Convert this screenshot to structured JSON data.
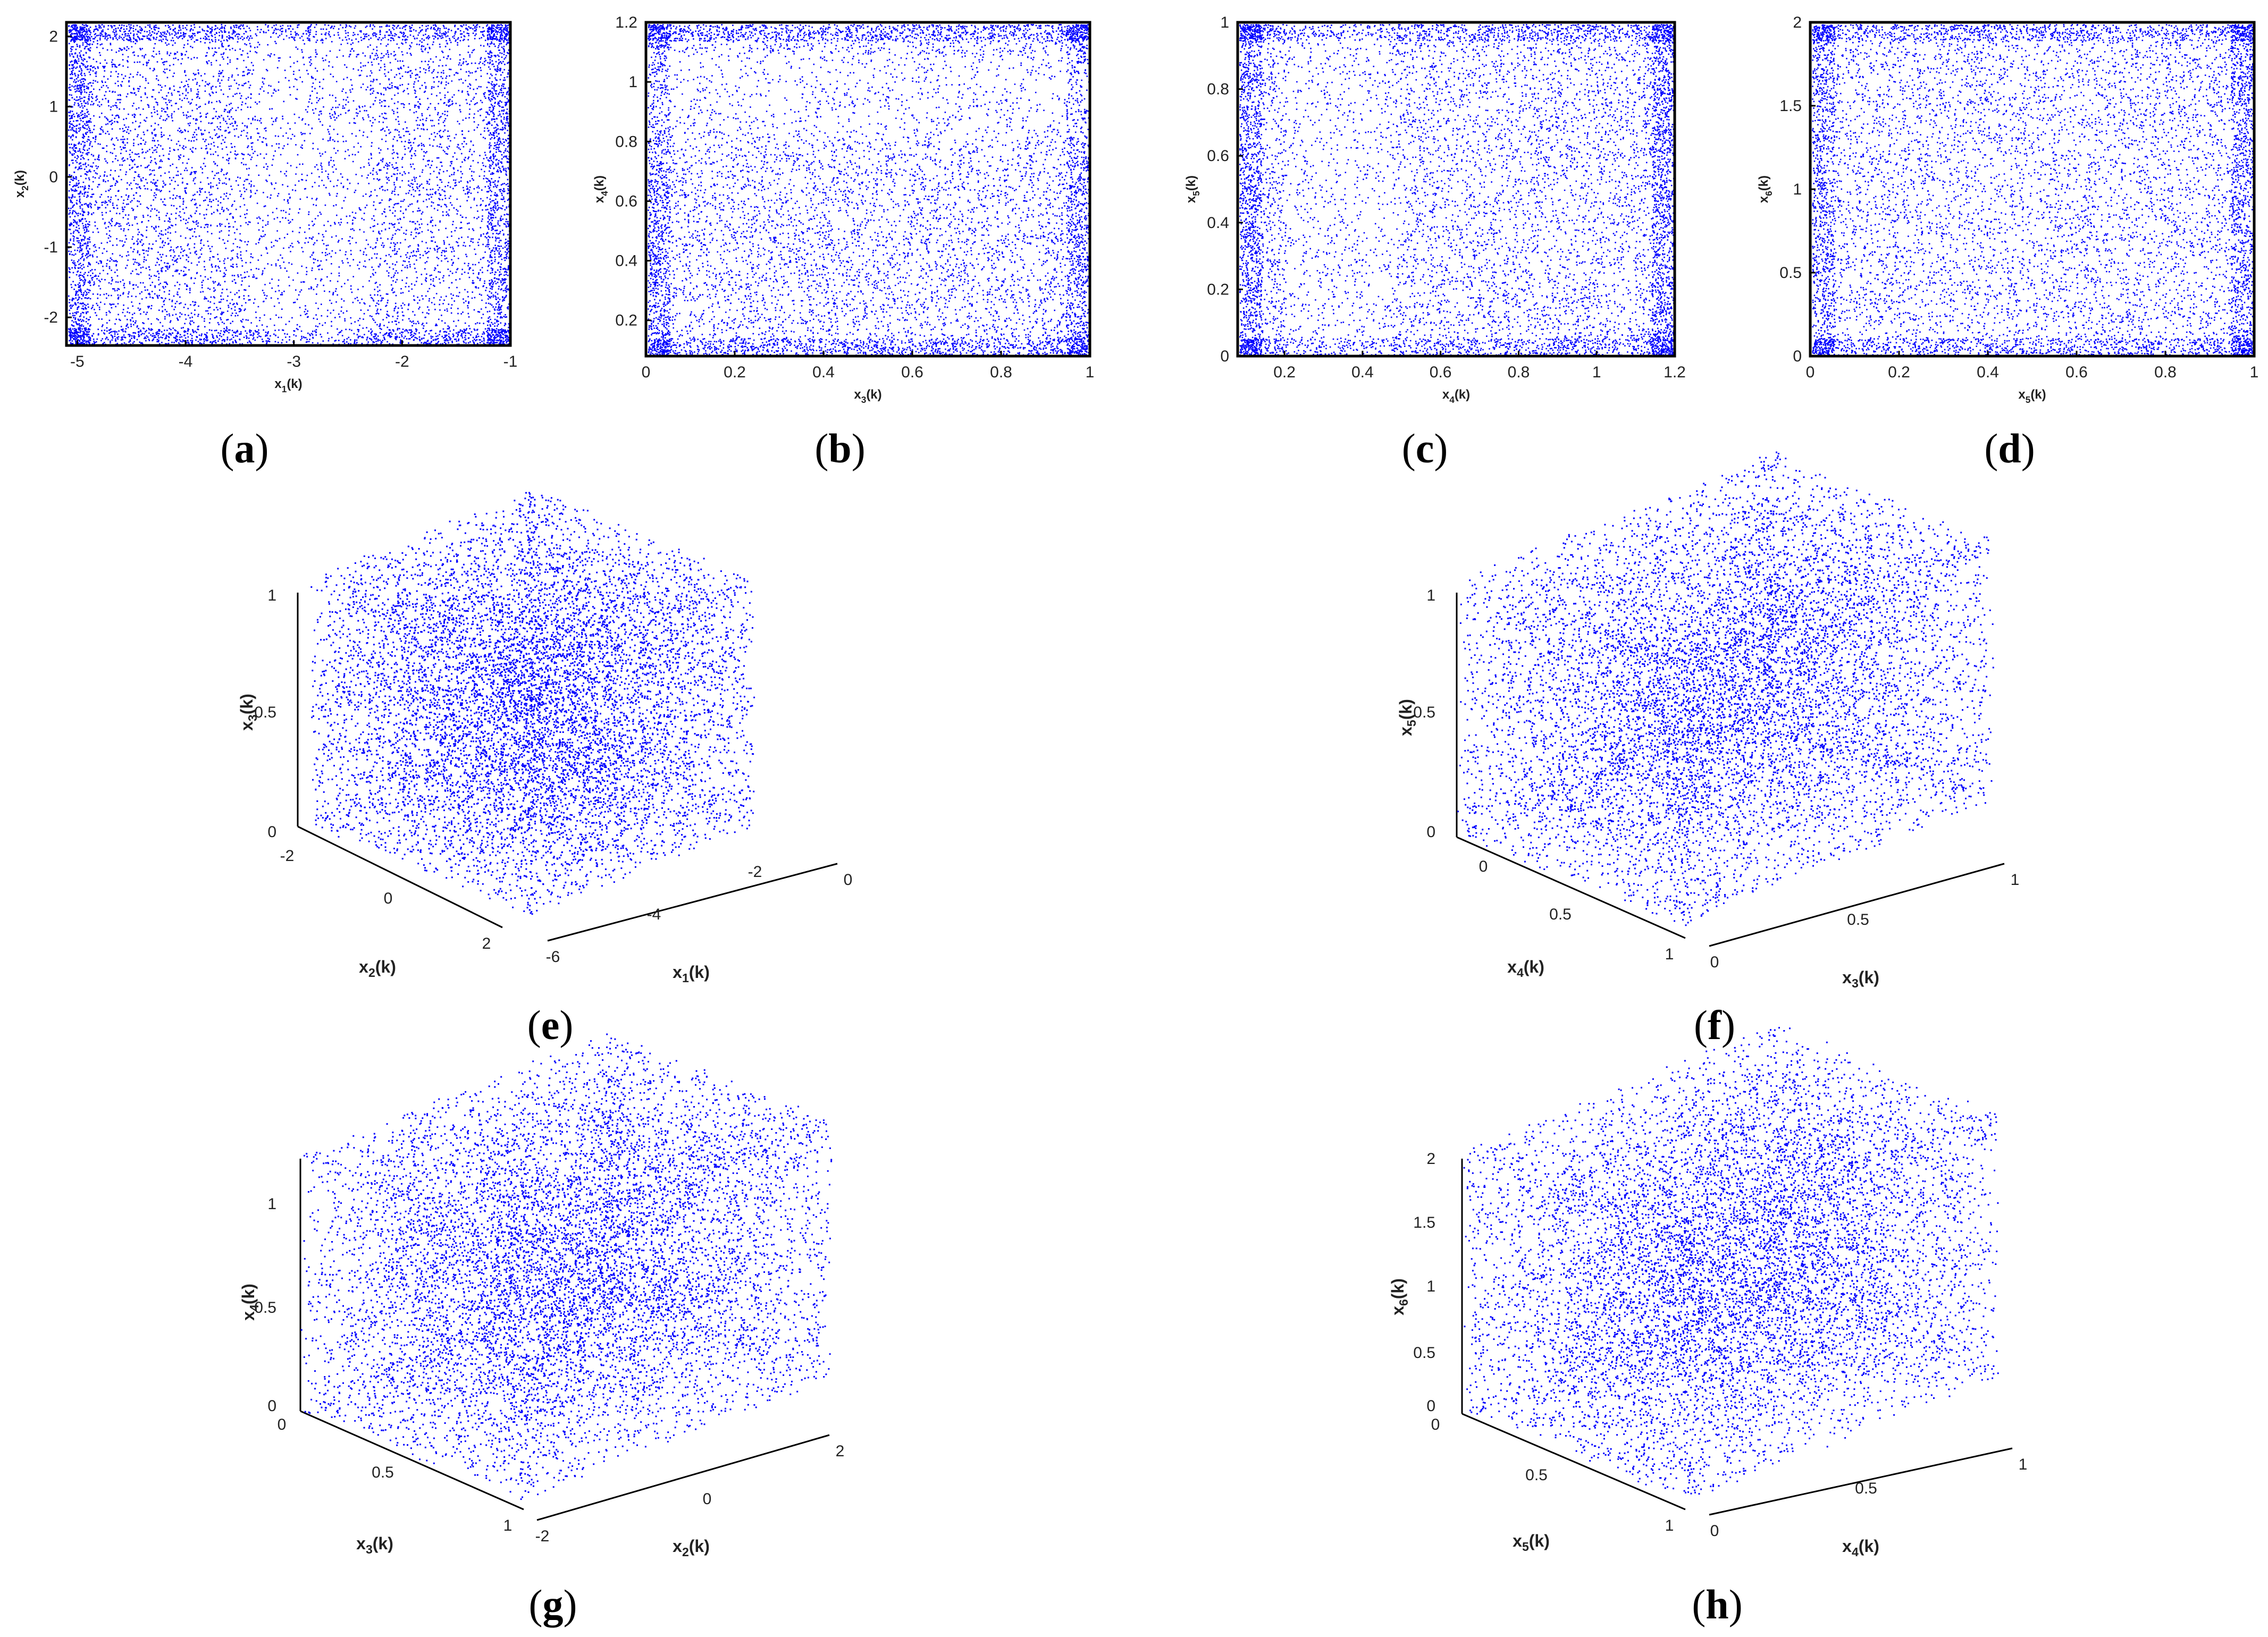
{
  "chart_data": [
    {
      "panel": "(a)",
      "type": "scatter",
      "dim": 2,
      "xlabel": "x₁(k)",
      "ylabel": "x₂(k)",
      "xlim": [
        -5.1,
        -1.0
      ],
      "ylim": [
        -2.4,
        2.2
      ],
      "xticks": [
        -5,
        -4,
        -3,
        -2,
        -1
      ],
      "yticks": [
        -2,
        -1,
        0,
        1,
        2
      ],
      "color": "#0000ff",
      "n_points": 9000
    },
    {
      "panel": "(b)",
      "type": "scatter",
      "dim": 2,
      "xlabel": "x₃(k)",
      "ylabel": "x₄(k)",
      "xlim": [
        0,
        1
      ],
      "ylim": [
        0.08,
        1.2
      ],
      "xticks": [
        0,
        0.2,
        0.4,
        0.6,
        0.8,
        1
      ],
      "yticks": [
        0.2,
        0.4,
        0.6,
        0.8,
        1,
        1.2
      ],
      "color": "#0000ff",
      "n_points": 9000
    },
    {
      "panel": "(c)",
      "type": "scatter",
      "dim": 2,
      "xlabel": "x₄(k)",
      "ylabel": "x₅(k)",
      "xlim": [
        0.08,
        1.2
      ],
      "ylim": [
        0,
        1
      ],
      "xticks": [
        0.2,
        0.4,
        0.6,
        0.8,
        1,
        1.2
      ],
      "yticks": [
        0,
        0.2,
        0.4,
        0.6,
        0.8,
        1
      ],
      "color": "#0000ff",
      "n_points": 9000
    },
    {
      "panel": "(d)",
      "type": "scatter",
      "dim": 2,
      "xlabel": "x₅(k)",
      "ylabel": "x₆(k)",
      "xlim": [
        0,
        1
      ],
      "ylim": [
        0,
        2
      ],
      "xticks": [
        0,
        0.2,
        0.4,
        0.6,
        0.8,
        1
      ],
      "yticks": [
        0,
        0.5,
        1,
        1.5,
        2
      ],
      "color": "#0000ff",
      "n_points": 9000
    },
    {
      "panel": "(e)",
      "type": "scatter",
      "dim": 3,
      "xlabel": "x₁(k)",
      "ylabel": "x₂(k)",
      "zlabel": "x₃(k)",
      "xticks": [
        "-6",
        "-4",
        "-2",
        "0"
      ],
      "yticks": [
        "-2",
        "0",
        "2"
      ],
      "zticks": [
        "0",
        "0.5",
        "1"
      ],
      "color": "#0000ff",
      "n_points": 9000
    },
    {
      "panel": "(f)",
      "type": "scatter",
      "dim": 3,
      "xlabel": "x₃(k)",
      "ylabel": "x₄(k)",
      "zlabel": "x₅(k)",
      "xticks": [
        "0",
        "0.5",
        "1"
      ],
      "yticks": [
        "0",
        "0.5",
        "1"
      ],
      "zticks": [
        "0",
        "0.5",
        "1"
      ],
      "color": "#0000ff",
      "n_points": 9000
    },
    {
      "panel": "(g)",
      "type": "scatter",
      "dim": 3,
      "xlabel": "x₂(k)",
      "ylabel": "x₃(k)",
      "zlabel": "x₄(k)",
      "xticks": [
        "-2",
        "0",
        "2"
      ],
      "yticks": [
        "0",
        "0.5",
        "1"
      ],
      "zticks": [
        "0",
        "0.5",
        "1"
      ],
      "color": "#0000ff",
      "n_points": 9000
    },
    {
      "panel": "(h)",
      "type": "scatter",
      "dim": 3,
      "xlabel": "x₄(k)",
      "ylabel": "x₅(k)",
      "zlabel": "x₆(k)",
      "xticks": [
        "0",
        "0.5",
        "1"
      ],
      "yticks": [
        "0",
        "0.5",
        "1"
      ],
      "zticks": [
        "0",
        "0.5",
        "1",
        "1.5",
        "2"
      ],
      "color": "#0000ff",
      "n_points": 9000
    }
  ],
  "captions": [
    "a",
    "b",
    "c",
    "d",
    "e",
    "f",
    "g",
    "h"
  ]
}
